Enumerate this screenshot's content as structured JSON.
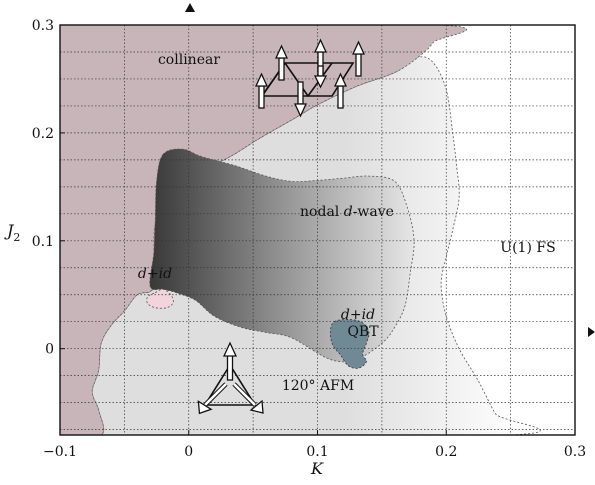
{
  "chart_data": {
    "type": "phase-diagram",
    "xlabel": "K",
    "ylabel": "J",
    "ylabel_sub": "2",
    "xlim": [
      -0.1,
      0.3
    ],
    "ylim": [
      -0.08,
      0.3
    ],
    "x_ticks": [
      -0.1,
      0,
      0.1,
      0.2,
      0.3
    ],
    "x_tick_labels": [
      "−0.1",
      "0",
      "0.1",
      "0.2",
      "0.3"
    ],
    "y_ticks": [
      0,
      0.1,
      0.2,
      0.3
    ],
    "y_tick_labels": [
      "0",
      "0.1",
      "0.2",
      "0.3"
    ],
    "grid": true,
    "colors": {
      "collinear": "#c7b5ba",
      "afm120": "#dedede",
      "nodal_dark": "#3a3a3a",
      "nodal_light": "#e8e8e8",
      "did_pink": "#f2d4dc",
      "did_qbt": "#6f8a95",
      "fs": "#ffffff"
    },
    "regions": [
      {
        "id": "collinear",
        "label": "collinear",
        "boundary": [
          [
            -0.1,
            0.3
          ],
          [
            0.195,
            0.3
          ],
          [
            0.19,
            0.284
          ],
          [
            0.178,
            0.27
          ],
          [
            0.16,
            0.256
          ],
          [
            0.13,
            0.243
          ],
          [
            0.1,
            0.226
          ],
          [
            0.08,
            0.212
          ],
          [
            0.055,
            0.195
          ],
          [
            0.035,
            0.18
          ],
          [
            0.012,
            0.165
          ],
          [
            -0.012,
            0.145
          ],
          [
            -0.025,
            0.12
          ],
          [
            -0.027,
            0.09
          ],
          [
            -0.025,
            0.062
          ],
          [
            -0.03,
            0.053
          ],
          [
            -0.04,
            0.05
          ],
          [
            -0.05,
            0.035
          ],
          [
            -0.06,
            0.022
          ],
          [
            -0.068,
            0.005
          ],
          [
            -0.07,
            -0.02
          ],
          [
            -0.075,
            -0.04
          ],
          [
            -0.07,
            -0.057
          ],
          [
            -0.068,
            -0.08
          ],
          [
            -0.1,
            -0.08
          ]
        ]
      },
      {
        "id": "afm120",
        "label_deg": "120°",
        "label_rest": " AFM",
        "boundary": [
          [
            -0.1,
            -0.08
          ],
          [
            -0.068,
            -0.08
          ],
          [
            -0.07,
            -0.057
          ],
          [
            -0.075,
            -0.04
          ],
          [
            -0.07,
            -0.02
          ],
          [
            -0.068,
            0.005
          ],
          [
            -0.06,
            0.022
          ],
          [
            -0.05,
            0.035
          ],
          [
            -0.04,
            0.05
          ],
          [
            -0.03,
            0.053
          ],
          [
            -0.025,
            0.062
          ],
          [
            -0.027,
            0.09
          ],
          [
            -0.025,
            0.12
          ],
          [
            -0.012,
            0.145
          ],
          [
            0.012,
            0.165
          ],
          [
            0.035,
            0.18
          ],
          [
            0.055,
            0.195
          ],
          [
            0.08,
            0.212
          ],
          [
            0.1,
            0.226
          ],
          [
            0.13,
            0.243
          ],
          [
            0.16,
            0.256
          ],
          [
            0.178,
            0.27
          ],
          [
            0.19,
            0.265
          ],
          [
            0.2,
            0.24
          ],
          [
            0.205,
            0.2
          ],
          [
            0.208,
            0.17
          ],
          [
            0.21,
            0.14
          ],
          [
            0.205,
            0.11
          ],
          [
            0.2,
            0.085
          ],
          [
            0.196,
            0.06
          ],
          [
            0.2,
            0.03
          ],
          [
            0.21,
            0.0
          ],
          [
            0.225,
            -0.03
          ],
          [
            0.238,
            -0.06
          ],
          [
            0.25,
            -0.08
          ]
        ]
      },
      {
        "id": "nodal_dwave",
        "label_pre": "nodal ",
        "label_it": "d",
        "label_post": "-wave",
        "boundary": [
          [
            -0.02,
            0.18
          ],
          [
            -0.005,
            0.185
          ],
          [
            0.01,
            0.178
          ],
          [
            0.035,
            0.17
          ],
          [
            0.06,
            0.16
          ],
          [
            0.08,
            0.155
          ],
          [
            0.1,
            0.156
          ],
          [
            0.12,
            0.158
          ],
          [
            0.14,
            0.16
          ],
          [
            0.16,
            0.155
          ],
          [
            0.17,
            0.13
          ],
          [
            0.175,
            0.1
          ],
          [
            0.172,
            0.07
          ],
          [
            0.168,
            0.04
          ],
          [
            0.16,
            0.02
          ],
          [
            0.15,
            0.005
          ],
          [
            0.13,
            -0.01
          ],
          [
            0.11,
            -0.01
          ],
          [
            0.08,
            0.01
          ],
          [
            0.06,
            0.015
          ],
          [
            0.04,
            0.02
          ],
          [
            0.02,
            0.03
          ],
          [
            0.005,
            0.045
          ],
          [
            -0.01,
            0.052
          ],
          [
            -0.02,
            0.055
          ],
          [
            -0.03,
            0.058
          ],
          [
            -0.027,
            0.09
          ],
          [
            -0.026,
            0.12
          ],
          [
            -0.025,
            0.155
          ]
        ]
      },
      {
        "id": "did_small",
        "label_pre": "d",
        "label_plus": "+",
        "label_it": "id",
        "boundary": [
          [
            -0.026,
            0.052
          ],
          [
            -0.02,
            0.055
          ],
          [
            -0.014,
            0.05
          ],
          [
            -0.012,
            0.043
          ],
          [
            -0.017,
            0.038
          ],
          [
            -0.026,
            0.038
          ],
          [
            -0.032,
            0.042
          ],
          [
            -0.032,
            0.048
          ]
        ]
      },
      {
        "id": "did_qbt",
        "label_pre": "d",
        "label_plus": "+",
        "label_it": "id",
        "label2": "QBT",
        "boundary": [
          [
            0.113,
            0.025
          ],
          [
            0.125,
            0.027
          ],
          [
            0.135,
            0.024
          ],
          [
            0.14,
            0.015
          ],
          [
            0.138,
            0.005
          ],
          [
            0.135,
            -0.005
          ],
          [
            0.138,
            -0.012
          ],
          [
            0.132,
            -0.018
          ],
          [
            0.124,
            -0.016
          ],
          [
            0.118,
            -0.006
          ],
          [
            0.112,
            0.003
          ],
          [
            0.11,
            0.015
          ]
        ]
      },
      {
        "id": "u1_fs",
        "label": "U(1) FS"
      }
    ],
    "annotations": [
      {
        "id": "collinear-spin-pattern",
        "center": [
          0.1,
          0.237
        ]
      },
      {
        "id": "afm120-spin-pattern",
        "center": [
          0.032,
          -0.04
        ]
      }
    ]
  }
}
